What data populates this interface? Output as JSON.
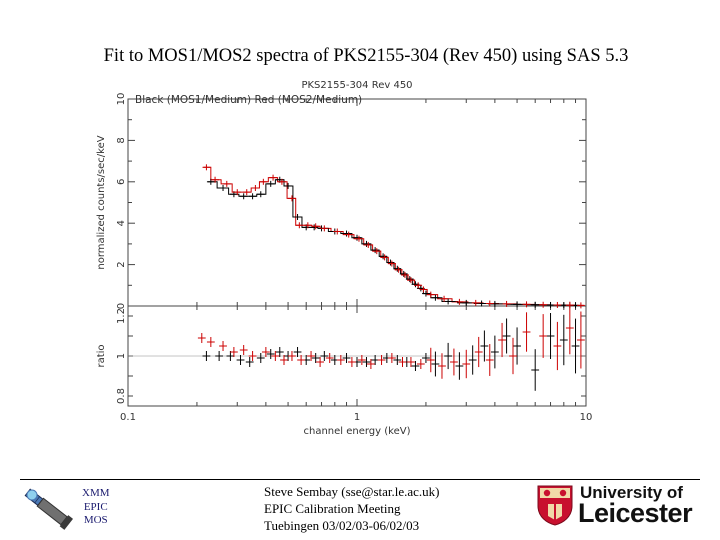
{
  "slide": {
    "title": "Fit to MOS1/MOS2 spectra of PKS2155-304 (Rev 450) using SAS 5.3"
  },
  "footer": {
    "xmm_lines": [
      "XMM",
      "EPIC",
      "MOS"
    ],
    "author_lines": [
      "Steve Sembay (sse@star.le.ac.uk)",
      "EPIC Calibration Meeting",
      "Tuebingen 03/02/03-06/02/03"
    ],
    "university_line1": "University of",
    "university_line2": "Leicester",
    "colors": {
      "xmm_text": "#1a1a6e",
      "shield_red": "#c8102e"
    },
    "icons": [
      "satellite-icon",
      "university-shield-icon"
    ]
  },
  "chart_data": [
    {
      "type": "scatter",
      "title": "PKS2155-304 Rev 450",
      "legend_text": "Black (MOS1/Medium)   Red (MOS2/Medium)",
      "xlabel": "channel energy (keV)",
      "ylabel": "normalized counts/sec/keV",
      "xscale": "log",
      "xlim": [
        0.1,
        10
      ],
      "ylim": [
        0,
        10
      ],
      "xticks": [
        "0.1",
        "1",
        "10"
      ],
      "yticks": [
        "0",
        "2",
        "4",
        "6",
        "8",
        "10"
      ],
      "series": [
        {
          "name": "MOS1/Medium",
          "color": "#000000",
          "x": [
            0.23,
            0.26,
            0.29,
            0.32,
            0.35,
            0.38,
            0.42,
            0.46,
            0.5,
            0.55,
            0.6,
            0.65,
            0.7,
            0.8,
            0.9,
            1.0,
            1.1,
            1.2,
            1.3,
            1.4,
            1.5,
            1.6,
            1.7,
            1.8,
            1.9,
            2.0,
            2.2,
            2.5,
            3.0,
            3.5,
            4.0,
            5.0,
            6.0,
            7.0,
            8.0,
            9.0
          ],
          "y": [
            6.0,
            5.7,
            5.4,
            5.3,
            5.3,
            5.4,
            5.9,
            6.1,
            5.8,
            4.3,
            3.8,
            3.8,
            3.75,
            3.6,
            3.5,
            3.3,
            3.0,
            2.7,
            2.4,
            2.1,
            1.8,
            1.55,
            1.3,
            1.05,
            0.85,
            0.6,
            0.4,
            0.22,
            0.15,
            0.12,
            0.1,
            0.08,
            0.06,
            0.05,
            0.04,
            0.03
          ]
        },
        {
          "name": "MOS2/Medium",
          "color": "#cc0000",
          "x": [
            0.22,
            0.24,
            0.27,
            0.3,
            0.33,
            0.36,
            0.39,
            0.43,
            0.47,
            0.52,
            0.56,
            0.61,
            0.66,
            0.72,
            0.82,
            0.92,
            1.02,
            1.12,
            1.22,
            1.32,
            1.42,
            1.52,
            1.62,
            1.72,
            1.85,
            1.95,
            2.1,
            2.4,
            2.8,
            3.3,
            3.8,
            4.5,
            5.5,
            6.5,
            7.5,
            8.5,
            9.5
          ],
          "y": [
            6.7,
            6.1,
            5.9,
            5.5,
            5.5,
            5.7,
            6.0,
            6.2,
            6.0,
            5.2,
            3.9,
            3.9,
            3.85,
            3.75,
            3.6,
            3.45,
            3.25,
            2.95,
            2.65,
            2.35,
            2.05,
            1.75,
            1.5,
            1.25,
            1.0,
            0.8,
            0.55,
            0.35,
            0.2,
            0.15,
            0.12,
            0.1,
            0.08,
            0.06,
            0.05,
            0.04,
            0.03
          ]
        }
      ]
    },
    {
      "type": "scatter",
      "xlabel": "channel energy (keV)",
      "ylabel": "ratio",
      "xscale": "log",
      "xlim": [
        0.1,
        10
      ],
      "ylim": [
        0.75,
        1.25
      ],
      "yticks": [
        "0.8",
        "1",
        "1.2"
      ],
      "series": [
        {
          "name": "MOS1/Medium",
          "color": "#000000",
          "x": [
            0.22,
            0.25,
            0.28,
            0.31,
            0.34,
            0.38,
            0.42,
            0.46,
            0.5,
            0.55,
            0.6,
            0.66,
            0.72,
            0.8,
            0.9,
            1.0,
            1.1,
            1.2,
            1.35,
            1.5,
            1.65,
            1.8,
            2.0,
            2.2,
            2.5,
            2.8,
            3.2,
            3.6,
            4.0,
            4.5,
            5.0,
            6.0,
            7.0,
            8.0,
            9.0
          ],
          "y": [
            1.0,
            1.0,
            1.0,
            0.98,
            0.97,
            0.99,
            1.01,
            1.02,
            1.0,
            1.02,
            0.98,
            0.99,
            1.0,
            0.98,
            0.99,
            0.97,
            0.97,
            0.98,
            0.99,
            0.98,
            0.97,
            0.95,
            0.99,
            0.96,
            1.0,
            0.95,
            0.98,
            1.05,
            1.02,
            1.1,
            1.05,
            0.93,
            1.1,
            1.08,
            1.05
          ]
        },
        {
          "name": "MOS2/Medium",
          "color": "#cc0000",
          "x": [
            0.21,
            0.23,
            0.26,
            0.29,
            0.32,
            0.35,
            0.4,
            0.44,
            0.48,
            0.52,
            0.57,
            0.63,
            0.69,
            0.76,
            0.85,
            0.95,
            1.05,
            1.15,
            1.28,
            1.42,
            1.58,
            1.72,
            1.9,
            2.1,
            2.35,
            2.65,
            3.0,
            3.4,
            3.8,
            4.3,
            4.8,
            5.5,
            6.5,
            7.5,
            8.5,
            9.5
          ],
          "y": [
            1.09,
            1.07,
            1.05,
            1.02,
            1.03,
            1.0,
            1.02,
            1.0,
            0.98,
            1.0,
            0.98,
            1.0,
            0.97,
            0.99,
            0.98,
            0.97,
            0.98,
            0.96,
            0.98,
            0.99,
            0.97,
            0.97,
            0.96,
            0.98,
            0.95,
            0.97,
            0.96,
            1.02,
            0.98,
            1.08,
            1.0,
            1.12,
            1.1,
            1.05,
            1.14,
            1.08
          ]
        }
      ]
    }
  ]
}
